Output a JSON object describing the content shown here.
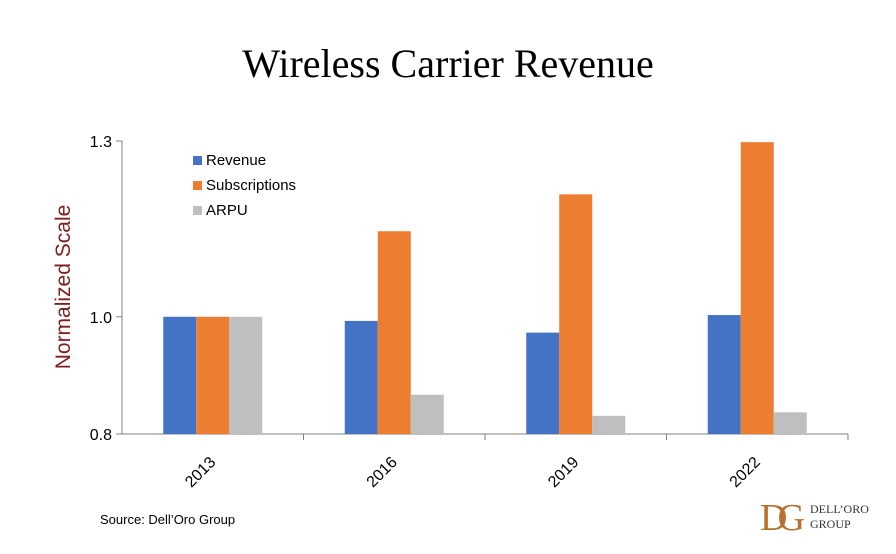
{
  "chart_data": {
    "type": "bar",
    "title": "Wireless Carrier Revenue",
    "xlabel": "",
    "ylabel": "Normalized Scale",
    "ylim": [
      0.8,
      1.3
    ],
    "yticks": [
      "0.8",
      "1.0",
      "1.3"
    ],
    "categories": [
      "2013",
      "2016",
      "2019",
      "2022"
    ],
    "series": [
      {
        "name": "Revenue",
        "color": "#4472c4",
        "values": [
          1.0,
          0.993,
          0.973,
          1.003
        ]
      },
      {
        "name": "Subscriptions",
        "color": "#ed7d31",
        "values": [
          1.0,
          1.146,
          1.209,
          1.298
        ]
      },
      {
        "name": "ARPU",
        "color": "#bfbfbf",
        "values": [
          1.0,
          0.867,
          0.831,
          0.837
        ]
      }
    ],
    "legend": "top-left",
    "grid": false
  },
  "footer": {
    "source": "Source: Dell’Oro Group",
    "logo_mark": "DG",
    "logo_line1": "DELL’ORO",
    "logo_line2": "GROUP"
  }
}
